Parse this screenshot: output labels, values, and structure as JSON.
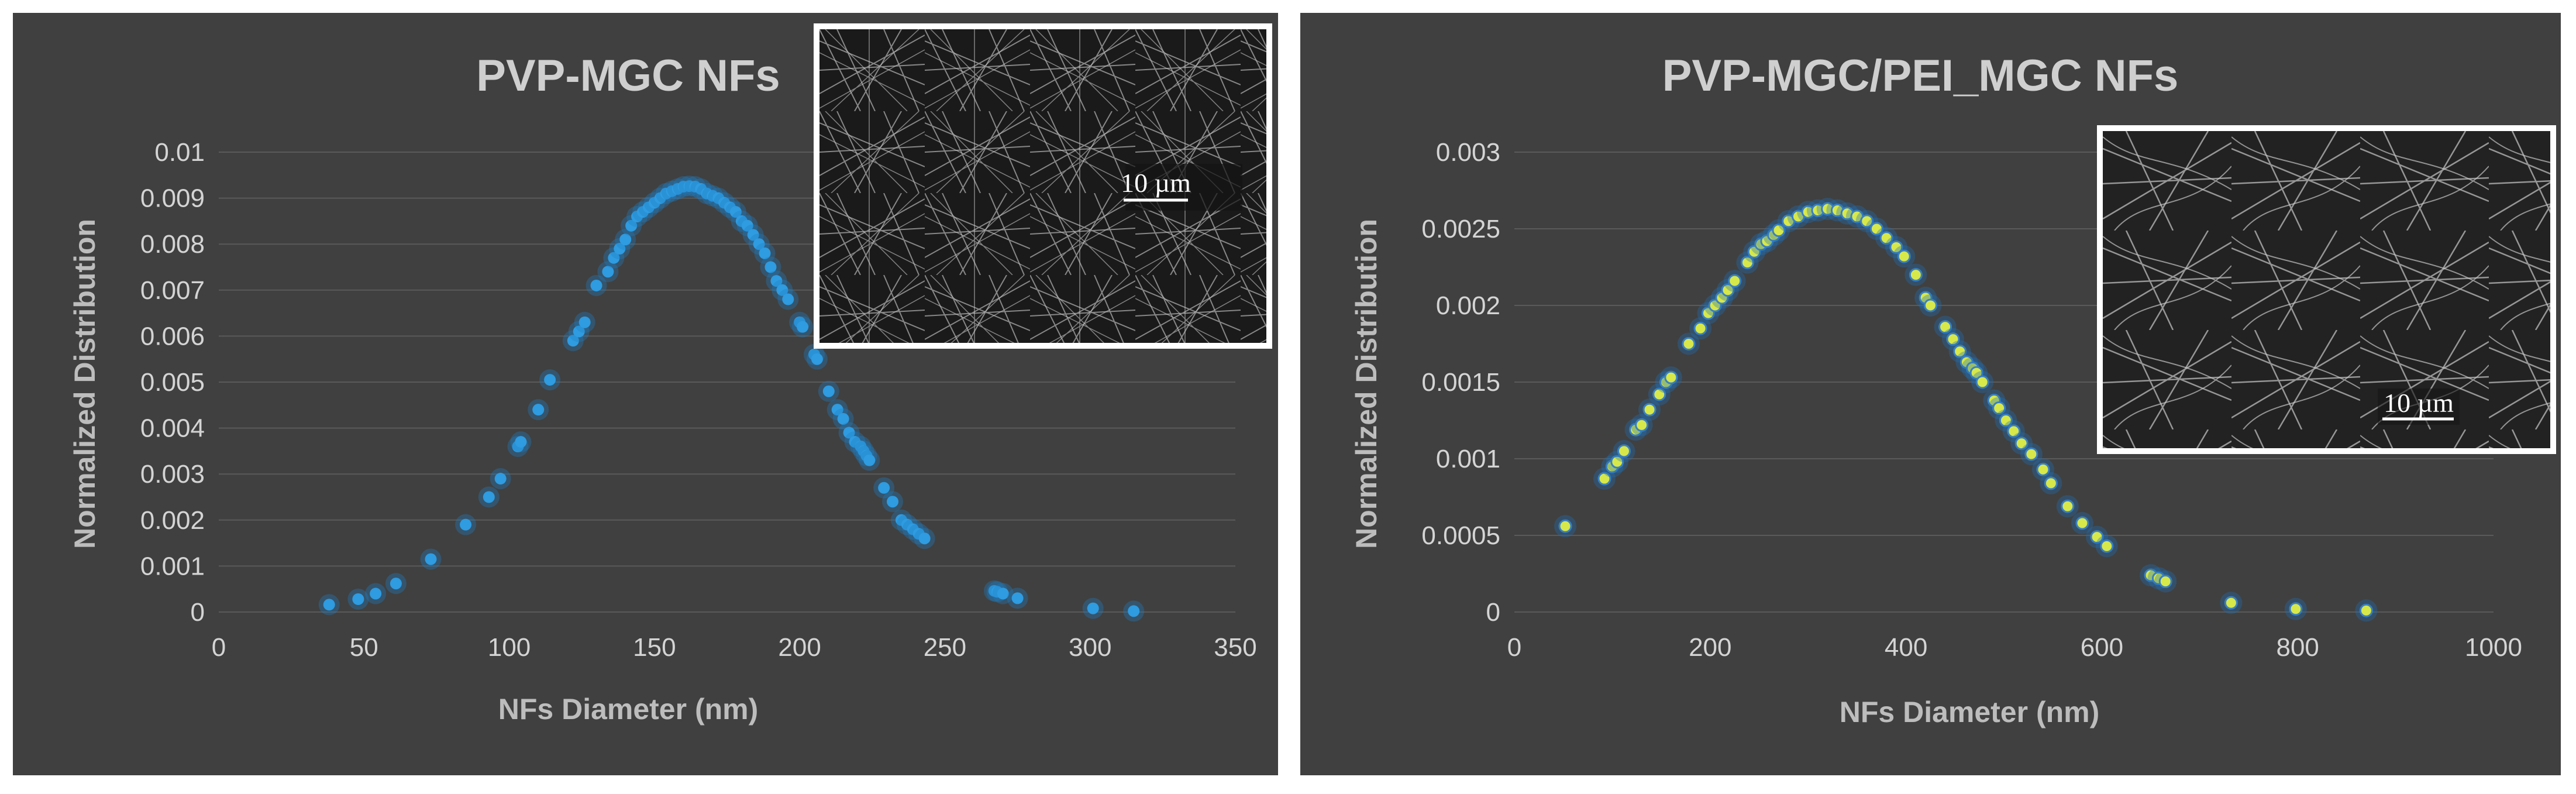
{
  "colors": {
    "background": "#ffffff",
    "panel": "#404040",
    "left_marker": "#2f9be0",
    "left_glow": "#1f7fc4",
    "right_marker": "#d7e84a",
    "right_marker_edge": "#3a7fc0",
    "right_glow": "#1f6fb8"
  },
  "chart_data": [
    {
      "type": "scatter",
      "title": "PVP-MGC NFs",
      "xlabel": "NFs Diameter (nm)",
      "ylabel": "Normalized Distribution",
      "xlim": [
        0,
        350
      ],
      "ylim": [
        0,
        0.01
      ],
      "xticks": [
        0,
        50,
        100,
        150,
        200,
        250,
        300,
        350
      ],
      "xtick_labels": [
        "0",
        "50",
        "100",
        "150",
        "200",
        "250",
        "300",
        "350"
      ],
      "yticks": [
        0,
        0.001,
        0.002,
        0.003,
        0.004,
        0.005,
        0.006,
        0.007,
        0.008,
        0.009,
        0.01
      ],
      "ytick_labels": [
        "0",
        "0.001",
        "0.002",
        "0.003",
        "0.004",
        "0.005",
        "0.006",
        "0.007",
        "0.008",
        "0.009",
        "0.01"
      ],
      "grid": "horizontal",
      "marker_color": "#2f9be0",
      "inset": {
        "scale_bar": "10 µm"
      },
      "x": [
        38,
        48,
        54,
        61,
        73,
        85,
        93,
        97,
        103,
        104,
        110,
        114,
        122,
        124,
        126,
        130,
        134,
        136,
        138,
        140,
        142,
        144,
        146,
        148,
        150,
        152,
        154,
        156,
        158,
        160,
        162,
        164,
        166,
        168,
        170,
        172,
        174,
        176,
        178,
        180,
        182,
        184,
        186,
        188,
        190,
        192,
        194,
        196,
        200,
        201,
        205,
        206,
        210,
        213,
        215,
        217,
        219,
        221,
        222,
        223,
        224,
        229,
        232,
        235,
        237,
        239,
        241,
        243,
        267,
        268,
        270,
        275,
        301,
        315
      ],
      "y": [
        0.00016,
        0.00028,
        0.0004,
        0.00062,
        0.00115,
        0.0019,
        0.0025,
        0.0029,
        0.0036,
        0.0037,
        0.0044,
        0.00505,
        0.0059,
        0.0061,
        0.0063,
        0.0071,
        0.0074,
        0.0077,
        0.0079,
        0.0081,
        0.0084,
        0.0086,
        0.0087,
        0.0088,
        0.0089,
        0.009,
        0.0091,
        0.00915,
        0.0092,
        0.00925,
        0.00926,
        0.00925,
        0.0092,
        0.0091,
        0.00905,
        0.009,
        0.0089,
        0.0088,
        0.0087,
        0.0085,
        0.0084,
        0.0082,
        0.008,
        0.0078,
        0.0075,
        0.0072,
        0.007,
        0.0068,
        0.0063,
        0.0062,
        0.0056,
        0.0055,
        0.0048,
        0.0044,
        0.0042,
        0.0039,
        0.0037,
        0.0036,
        0.0035,
        0.0034,
        0.0033,
        0.0027,
        0.0024,
        0.002,
        0.0019,
        0.0018,
        0.0017,
        0.0016,
        0.00046,
        0.00044,
        0.0004,
        0.0003,
        8e-05,
        2e-05
      ]
    },
    {
      "type": "scatter",
      "title": "PVP-MGC/PEI_MGC NFs",
      "xlabel": "NFs Diameter  (nm)",
      "ylabel": "Normalized Distribution",
      "xlim": [
        0,
        1000
      ],
      "ylim": [
        0,
        0.003
      ],
      "xticks": [
        0,
        200,
        400,
        600,
        800,
        1000
      ],
      "xtick_labels": [
        "0",
        "200",
        "400",
        "600",
        "800",
        "1000"
      ],
      "yticks": [
        0,
        0.0005,
        0.001,
        0.0015,
        0.002,
        0.0025,
        0.003
      ],
      "ytick_labels": [
        "0",
        "0.0005",
        "0.001",
        "0.0015",
        "0.002",
        "0.0025",
        "0.003"
      ],
      "grid": "horizontal",
      "marker_color": "#d7e84a",
      "inset": {
        "scale_bar": "10 µm"
      },
      "x": [
        52,
        92,
        100,
        105,
        112,
        124,
        130,
        138,
        148,
        155,
        160,
        178,
        190,
        198,
        205,
        212,
        218,
        225,
        238,
        245,
        252,
        258,
        265,
        270,
        280,
        290,
        300,
        310,
        320,
        330,
        340,
        350,
        360,
        370,
        380,
        390,
        398,
        410,
        420,
        425,
        440,
        448,
        455,
        462,
        468,
        472,
        478,
        490,
        495,
        502,
        510,
        518,
        528,
        540,
        548,
        565,
        580,
        595,
        605,
        650,
        658,
        665,
        732,
        798,
        870
      ],
      "y": [
        0.00056,
        0.00087,
        0.00095,
        0.00098,
        0.00105,
        0.00119,
        0.00122,
        0.00132,
        0.00142,
        0.0015,
        0.00153,
        0.00175,
        0.00185,
        0.00195,
        0.002,
        0.00205,
        0.0021,
        0.00216,
        0.00228,
        0.00235,
        0.0024,
        0.00242,
        0.00246,
        0.00249,
        0.00255,
        0.00258,
        0.00261,
        0.00262,
        0.00263,
        0.00262,
        0.0026,
        0.00258,
        0.00255,
        0.0025,
        0.00244,
        0.00238,
        0.00232,
        0.0022,
        0.00205,
        0.002,
        0.00186,
        0.00178,
        0.0017,
        0.00163,
        0.00159,
        0.00156,
        0.0015,
        0.00138,
        0.00133,
        0.00125,
        0.00118,
        0.0011,
        0.00103,
        0.00093,
        0.00084,
        0.00069,
        0.00058,
        0.00049,
        0.00043,
        0.00024,
        0.00022,
        0.0002,
        6e-05,
        2e-05,
        1e-05
      ]
    }
  ]
}
